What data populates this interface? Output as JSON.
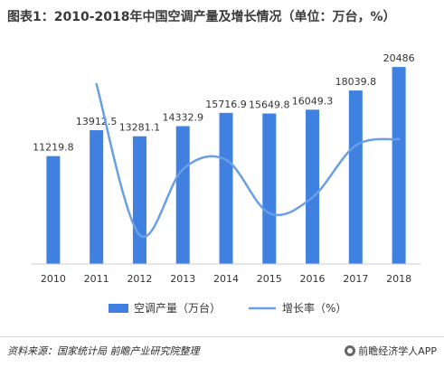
{
  "title": "图表1：2010-2018年中国空调产量及增长情况（单位：万台，%）",
  "chart_data": {
    "type": "bar",
    "categories": [
      "2010",
      "2011",
      "2012",
      "2013",
      "2014",
      "2015",
      "2016",
      "2017",
      "2018"
    ],
    "series": [
      {
        "name": "空调产量（万台）",
        "type": "bar",
        "values": [
          11219.8,
          13912.5,
          13281.1,
          14332.9,
          15716.9,
          15649.8,
          16049.3,
          18039.8,
          20486
        ],
        "labels": [
          "11219.8",
          "13912.5",
          "13281.1",
          "14332.9",
          "15716.9",
          "15649.8",
          "16049.3",
          "18039.8",
          "20486"
        ],
        "color": "#3f80e0"
      },
      {
        "name": "增长率（%）",
        "type": "line",
        "values": [
          null,
          24.0,
          -4.5,
          7.9,
          9.7,
          -0.4,
          2.6,
          12.4,
          13.6
        ],
        "color": "#6a9fe6"
      }
    ],
    "ylim": [
      0,
      22000
    ],
    "y2lim": [
      -10,
      30
    ]
  },
  "footer": {
    "source": "资料来源：国家统计局  前瞻产业研究院整理",
    "brand": "前瞻经济学人APP"
  },
  "icons": {
    "brand": "camera-icon"
  }
}
